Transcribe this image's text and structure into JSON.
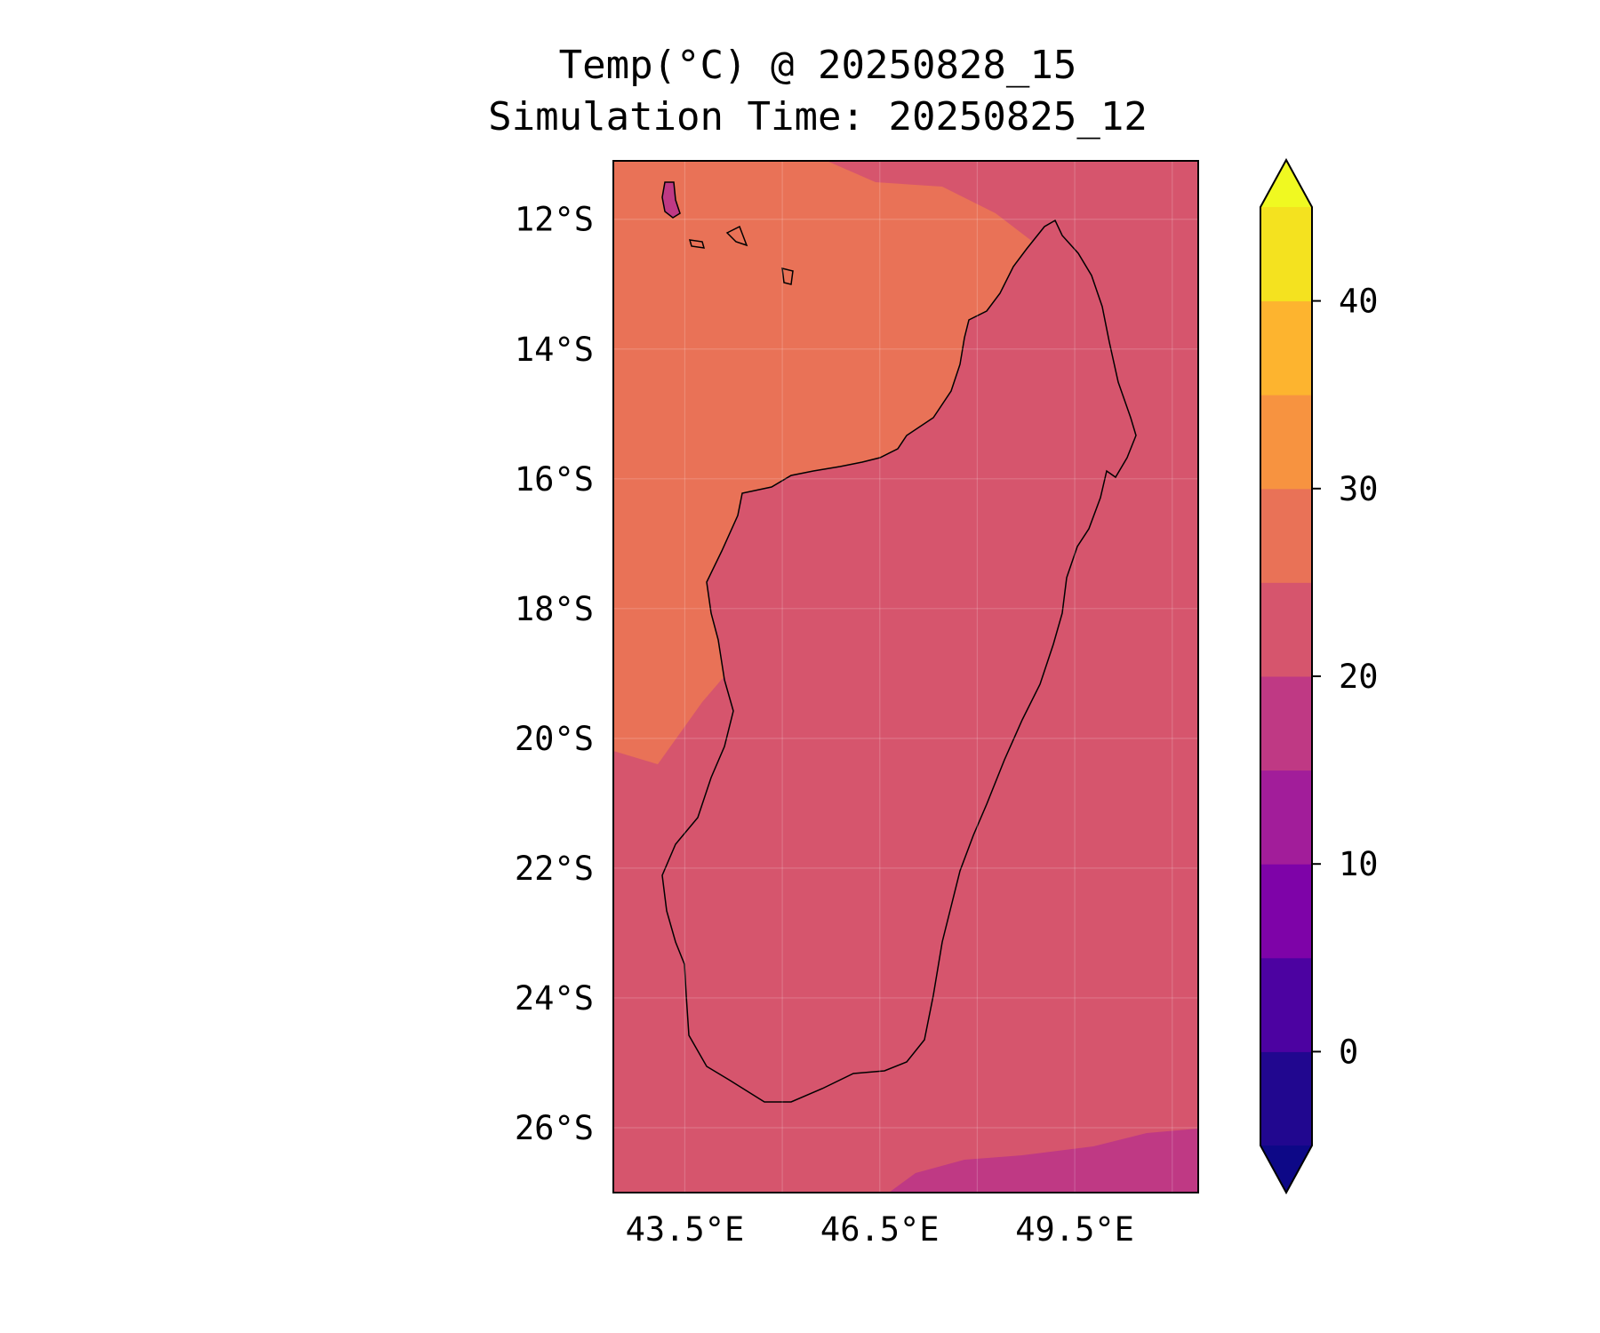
{
  "title": {
    "line1": "Temp(°C) @ 20250828_15",
    "line2": "Simulation Time: 20250825_12"
  },
  "map": {
    "region": "Madagascar",
    "lon_range": [
      42.4,
      51.4
    ],
    "lat_range": [
      -27,
      -11.1
    ],
    "lat_ticks": [
      {
        "value": -12,
        "label": "12°S"
      },
      {
        "value": -14,
        "label": "14°S"
      },
      {
        "value": -16,
        "label": "16°S"
      },
      {
        "value": -18,
        "label": "18°S"
      },
      {
        "value": -20,
        "label": "20°S"
      },
      {
        "value": -22,
        "label": "22°S"
      },
      {
        "value": -24,
        "label": "24°S"
      },
      {
        "value": -26,
        "label": "26°S"
      }
    ],
    "lon_ticks": [
      {
        "value": 43.5,
        "label": "43.5°E"
      },
      {
        "value": 46.5,
        "label": "46.5°E"
      },
      {
        "value": 49.5,
        "label": "49.5°E"
      }
    ],
    "grid": true,
    "colormap": "plasma"
  },
  "colorbar": {
    "ticks": [
      "40",
      "30",
      "20",
      "10",
      "0"
    ],
    "bands": [
      {
        "from": -5,
        "to": 0,
        "color": "#21078f"
      },
      {
        "from": 0,
        "to": 5,
        "color": "#4c02a1"
      },
      {
        "from": 5,
        "to": 10,
        "color": "#7e03a8"
      },
      {
        "from": 10,
        "to": 15,
        "color": "#a21d9a"
      },
      {
        "from": 15,
        "to": 20,
        "color": "#bf3984"
      },
      {
        "from": 20,
        "to": 25,
        "color": "#d6556d"
      },
      {
        "from": 25,
        "to": 30,
        "color": "#e97257"
      },
      {
        "from": 30,
        "to": 35,
        "color": "#f79340"
      },
      {
        "from": 35,
        "to": 40,
        "color": "#fdb42f"
      },
      {
        "from": 40,
        "to": 45,
        "color": "#f4e21f"
      }
    ],
    "extend_low_color": "#0d0887",
    "extend_high_color": "#f0f921"
  }
}
